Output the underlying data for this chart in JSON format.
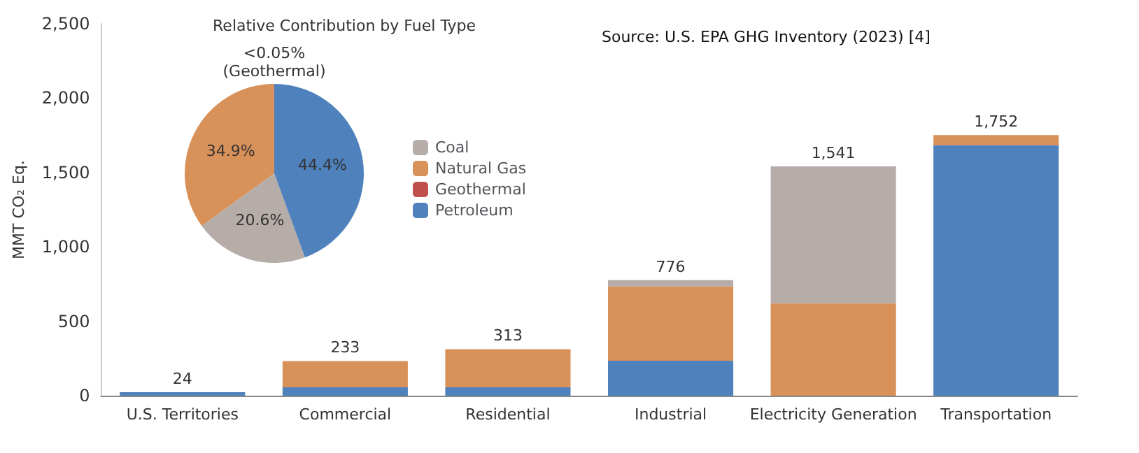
{
  "chart_data": [
    {
      "type": "bar",
      "stacked": true,
      "ylabel": "MMT CO₂ Eq.",
      "categories": [
        "U.S. Territories",
        "Commercial",
        "Residential",
        "Industrial",
        "Electricity Generation",
        "Transportation"
      ],
      "series": [
        {
          "color": "#4f81bd",
          "values": [
            24,
            56,
            56,
            235,
            0,
            1684
          ]
        },
        {
          "color": "#c0504d",
          "values": [
            0,
            0,
            0,
            0,
            0,
            0
          ]
        },
        {
          "color": "#d9915a",
          "values": [
            0,
            177,
            257,
            499,
            621,
            68
          ]
        },
        {
          "color": "#b6aca8",
          "values": [
            0,
            0,
            0,
            42,
            920,
            0
          ]
        }
      ],
      "totals": [
        "24",
        "233",
        "313",
        "776",
        "1,541",
        "1,752"
      ],
      "ylim": [
        0,
        2500
      ],
      "yticks": [
        0,
        500,
        {
          "value": 1000,
          "label": "1,000"
        },
        {
          "value": 1500,
          "label": "1,500"
        },
        {
          "value": 2000,
          "label": "2,000"
        },
        {
          "value": 2500,
          "label": "2,500"
        }
      ],
      "grid": false,
      "annotations": [
        "Source: U.S. EPA GHG Inventory (2023) [4]"
      ]
    },
    {
      "type": "pie",
      "title": "Relative Contribution by Fuel Type",
      "categories": [
        "Coal",
        "Natural Gas",
        "Geothermal",
        "Petroleum"
      ],
      "values": [
        20.6,
        34.9,
        0.04,
        44.4
      ],
      "colors": [
        "#b6aca8",
        "#d9915a",
        "#c0504d",
        "#4f81bd"
      ],
      "value_labels": [
        "20.6%",
        "34.9%",
        "<0.05%",
        "44.4%"
      ],
      "annotations": [
        "(Geothermal)"
      ],
      "legend": "right"
    }
  ]
}
